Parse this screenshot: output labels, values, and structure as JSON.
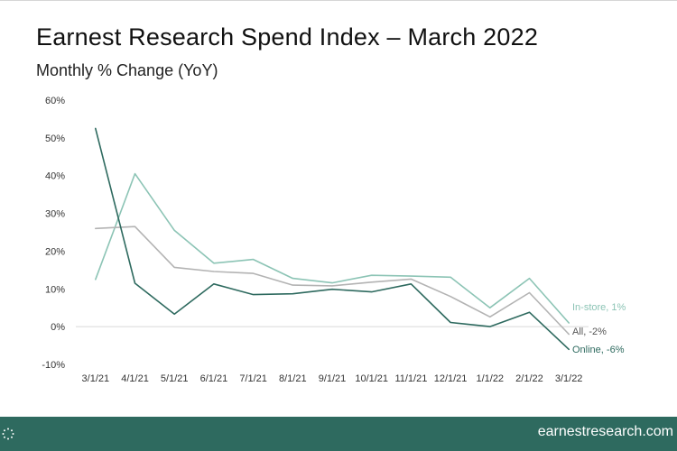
{
  "header": {
    "title": "Earnest Research Spend Index – March 2022",
    "subtitle": "Monthly % Change (YoY)"
  },
  "footer": {
    "url": "earnestresearch.com",
    "logo_icon": "dotted-circle-logo-icon"
  },
  "chart_data": {
    "type": "line",
    "title": "Earnest Research Spend Index – March 2022",
    "subtitle": "Monthly % Change (YoY)",
    "xlabel": "",
    "ylabel": "",
    "categories": [
      "3/1/21",
      "4/1/21",
      "5/1/21",
      "6/1/21",
      "7/1/21",
      "8/1/21",
      "9/1/21",
      "10/1/21",
      "11/1/21",
      "12/1/21",
      "1/1/22",
      "2/1/22",
      "3/1/22"
    ],
    "ylim": [
      -10,
      60
    ],
    "yticks": [
      -10,
      0,
      10,
      20,
      30,
      40,
      50,
      60
    ],
    "ytick_labels": [
      "-10%",
      "0%",
      "10%",
      "20%",
      "30%",
      "40%",
      "50%",
      "60%"
    ],
    "grid": false,
    "legend": "end-of-line labels",
    "series": [
      {
        "name": "In-store",
        "label": "In-store, 1%",
        "color": "#8cc4b5",
        "values": [
          12.5,
          40.5,
          25.5,
          16.8,
          17.8,
          12.8,
          11.6,
          13.6,
          13.4,
          13.1,
          5.0,
          12.8,
          1.0
        ]
      },
      {
        "name": "All",
        "label": "All, -2%",
        "color": "#b3b3b3",
        "values": [
          26.0,
          26.5,
          15.7,
          14.6,
          14.1,
          11.0,
          10.8,
          11.8,
          12.6,
          8.0,
          2.6,
          9.0,
          -2.0
        ]
      },
      {
        "name": "Online",
        "label": "Online, -6%",
        "color": "#2e6a5f",
        "values": [
          52.5,
          11.5,
          3.3,
          11.3,
          8.5,
          8.7,
          9.9,
          9.2,
          11.3,
          1.1,
          0.0,
          3.8,
          -6.0
        ]
      }
    ]
  }
}
